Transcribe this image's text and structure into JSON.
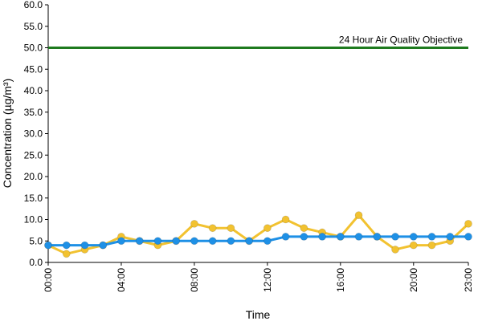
{
  "chart_data": {
    "type": "line",
    "xlabel": "Time",
    "ylabel": "Concentration (µg/m³)",
    "x": [
      0,
      1,
      2,
      3,
      4,
      5,
      6,
      7,
      8,
      9,
      10,
      11,
      12,
      13,
      14,
      15,
      16,
      17,
      18,
      19,
      20,
      21,
      22,
      23
    ],
    "x_tick_labels": [
      {
        "x": 0,
        "label": "00:00"
      },
      {
        "x": 4,
        "label": "04:00"
      },
      {
        "x": 8,
        "label": "08:00"
      },
      {
        "x": 12,
        "label": "12:00"
      },
      {
        "x": 16,
        "label": "16:00"
      },
      {
        "x": 20,
        "label": "20:00"
      },
      {
        "x": 23,
        "label": "23:00"
      }
    ],
    "xlim": [
      0,
      23
    ],
    "ylim": [
      0,
      60
    ],
    "y_ticks": [
      "0.0",
      "5.0",
      "10.0",
      "15.0",
      "20.0",
      "25.0",
      "30.0",
      "35.0",
      "40.0",
      "45.0",
      "50.0",
      "55.0",
      "60.0"
    ],
    "grid": false,
    "series": [
      {
        "color": "#f2c230",
        "values": [
          4,
          2,
          3,
          4,
          6,
          5,
          4,
          5,
          9,
          8,
          8,
          5,
          8,
          10,
          8,
          7,
          6,
          11,
          6,
          3,
          4,
          4,
          5,
          9
        ]
      },
      {
        "color": "#1e90e6",
        "values": [
          4,
          4,
          4,
          4,
          5,
          5,
          5,
          5,
          5,
          5,
          5,
          5,
          5,
          6,
          6,
          6,
          6,
          6,
          6,
          6,
          6,
          6,
          6,
          6
        ]
      }
    ],
    "reference_line": {
      "value": 50,
      "label": "24 Hour Air Quality Objective",
      "color": "#1e7a1e"
    }
  }
}
